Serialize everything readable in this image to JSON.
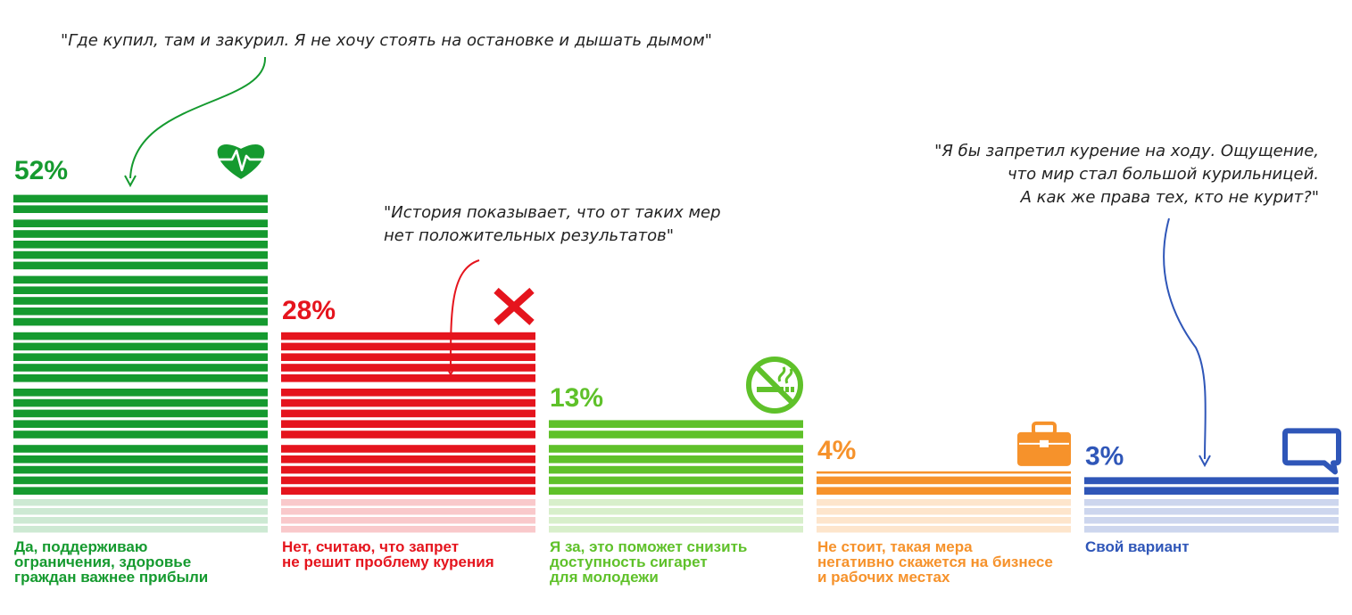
{
  "chart_data": {
    "type": "bar",
    "categories": [
      "Да, поддерживаю ограничения, здоровье граждан важнее прибыли",
      "Нет, считаю, что запрет не решит проблему курения",
      "Я за, это поможет снизить доступность сигарет для молодежи",
      "Не стоит, такая мера негативно скажется на бизнесе и рабочих местах",
      "Свой вариант"
    ],
    "values": [
      52,
      28,
      13,
      4,
      3
    ],
    "value_labels": [
      "52%",
      "28%",
      "13%",
      "4%",
      "3%"
    ],
    "unit": "%",
    "category_lines": [
      [
        "Да, поддерживаю",
        "ограничения, здоровье",
        "граждан важнее прибыли"
      ],
      [
        "Нет, считаю, что запрет",
        "не решит проблему курения"
      ],
      [
        "Я за, это поможет снизить",
        "доступность сигарет",
        "для молодежи"
      ],
      [
        "Не стоит, такая мера",
        "негативно скажется на бизнесе",
        "и рабочих местах"
      ],
      [
        "Свой вариант"
      ]
    ],
    "colors": [
      "#159a2f",
      "#e5141d",
      "#5fc12a",
      "#f6922b",
      "#2f56b8"
    ],
    "reflection_colors": [
      "#cde9d3",
      "#f9c9cb",
      "#d8efcb",
      "#fde5cc",
      "#cdd6ee"
    ],
    "icons": [
      "heart-pulse-icon",
      "cross-icon",
      "no-smoking-icon",
      "briefcase-icon",
      "speech-bubble-icon"
    ],
    "grid": false,
    "legend": "none"
  },
  "quotes": [
    {
      "lines": [
        "\"Где купил, там и закурил. Я не хочу стоять на остановке и дышать дымом\""
      ],
      "target": 0,
      "color": "#159a2f"
    },
    {
      "lines": [
        "\"История показывает, что от таких мер",
        "нет положительных результатов\""
      ],
      "target": 1,
      "color": "#e5141d"
    },
    {
      "lines": [
        "\"Я бы запретил курение на ходу. Ощущение,",
        "что мир стал большой курильницей.",
        "А как же права тех, кто не курит?\""
      ],
      "target": 4,
      "color": "#2f56b8"
    }
  ]
}
